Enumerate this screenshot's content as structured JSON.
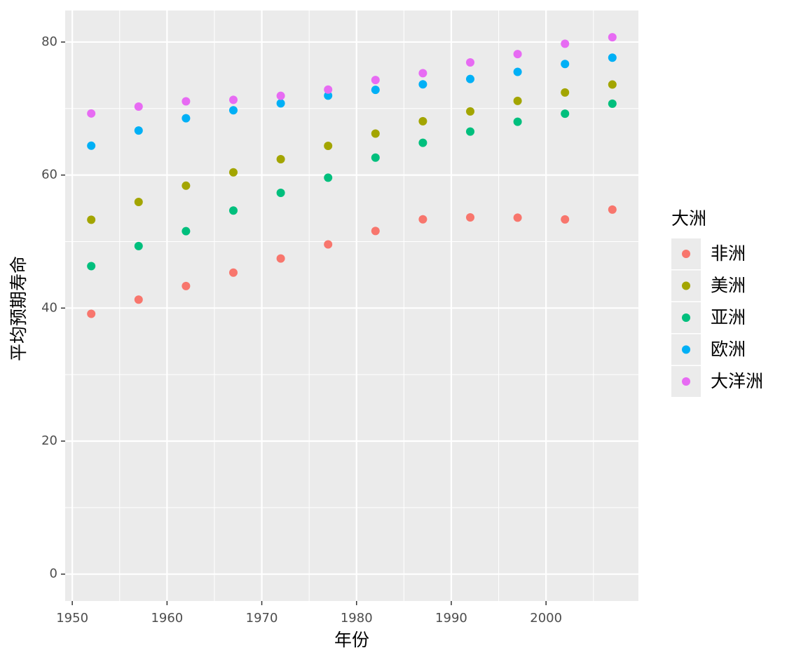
{
  "chart_data": {
    "type": "scatter",
    "x_label": "年份",
    "y_label": "平均预期寿命",
    "legend_title": "大洲",
    "legend_position": "right",
    "grid": true,
    "x": [
      1952,
      1957,
      1962,
      1967,
      1972,
      1977,
      1982,
      1987,
      1992,
      1997,
      2002,
      2007
    ],
    "series": [
      {
        "name": "非洲",
        "color": "#F8766D",
        "values": [
          39.14,
          41.27,
          43.32,
          45.33,
          47.45,
          49.58,
          51.59,
          53.34,
          53.63,
          53.6,
          53.33,
          54.81
        ]
      },
      {
        "name": "美洲",
        "color": "#A3A500",
        "values": [
          53.28,
          55.96,
          58.4,
          60.41,
          62.39,
          64.39,
          66.23,
          68.09,
          69.57,
          71.15,
          72.42,
          73.61
        ]
      },
      {
        "name": "亚洲",
        "color": "#00BF7D",
        "values": [
          46.31,
          49.32,
          51.56,
          54.66,
          57.32,
          59.61,
          62.62,
          64.85,
          66.54,
          68.02,
          69.23,
          70.73
        ]
      },
      {
        "name": "欧洲",
        "color": "#00B0F6",
        "values": [
          64.41,
          66.7,
          68.54,
          69.74,
          70.78,
          71.94,
          72.81,
          73.64,
          74.44,
          75.51,
          76.7,
          77.65
        ]
      },
      {
        "name": "大洋洲",
        "color": "#E76BF3",
        "values": [
          69.26,
          70.3,
          71.09,
          71.31,
          71.91,
          72.85,
          74.29,
          75.32,
          76.94,
          78.19,
          79.74,
          80.72
        ]
      }
    ],
    "xlim": [
      1949.25,
      2009.75
    ],
    "xticks": [
      1950,
      1960,
      1970,
      1980,
      1990,
      2000
    ],
    "x_minor_ticks": [
      1955,
      1965,
      1975,
      1985,
      1995,
      2005
    ],
    "ylim": [
      -4.04,
      84.74
    ],
    "yticks": [
      0,
      20,
      40,
      60,
      80
    ],
    "y_minor_ticks": [
      10,
      30,
      50,
      70
    ]
  }
}
